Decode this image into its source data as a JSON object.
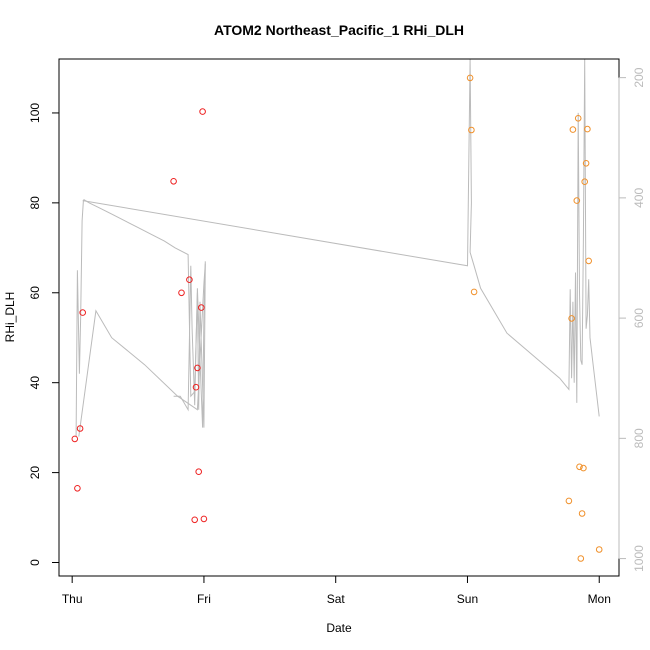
{
  "chart_data": {
    "type": "scatter",
    "title": "ATOM2 Northeast_Pacific_1 RHi_DLH",
    "xlabel": "Date",
    "ylabel": "RHi_DLH",
    "x_unit": "days since Thursday 00:00",
    "xlim": [
      -0.1,
      4.15
    ],
    "ylim": [
      -3,
      112
    ],
    "x_ticks": [
      {
        "value": 0,
        "label": "Thu"
      },
      {
        "value": 1,
        "label": "Fri"
      },
      {
        "value": 2,
        "label": "Sat"
      },
      {
        "value": 3,
        "label": "Sun"
      },
      {
        "value": 4,
        "label": "Mon"
      }
    ],
    "y_ticks": [
      0,
      20,
      40,
      60,
      80,
      100
    ],
    "y2_ticks": [
      200,
      400,
      600,
      800,
      1000
    ],
    "y2_range_at_ylim": [
      1029,
      169
    ],
    "series": [
      {
        "name": "",
        "color": "#ee2222",
        "marker": "open-circle",
        "x": [
          0.02,
          0.04,
          0.06,
          0.08,
          0.77,
          0.83,
          0.89,
          0.93,
          0.94,
          0.95,
          0.96,
          0.98,
          0.99,
          1.0
        ],
        "y": [
          27.5,
          16.5,
          29.8,
          55.6,
          84.8,
          60.0,
          62.9,
          9.5,
          39.0,
          43.3,
          20.2,
          56.7,
          100.3,
          9.7
        ]
      },
      {
        "name": "",
        "color": "#f0902a",
        "marker": "open-circle",
        "x": [
          3.02,
          3.03,
          3.05,
          3.77,
          3.79,
          3.8,
          3.83,
          3.84,
          3.85,
          3.86,
          3.87,
          3.88,
          3.89,
          3.9,
          3.91,
          3.92,
          4.0
        ],
        "y": [
          107.8,
          96.2,
          60.2,
          13.7,
          54.3,
          96.3,
          80.5,
          98.8,
          21.3,
          0.9,
          10.9,
          21.0,
          84.7,
          88.8,
          96.4,
          67.1,
          2.9
        ]
      },
      {
        "name": "",
        "color": "#bbbbbb",
        "marker": "line",
        "x": [
          0.03,
          0.04,
          0.055,
          0.065,
          0.075,
          0.085,
          0.09,
          0.13,
          0.2,
          0.3,
          0.4,
          0.5,
          0.6,
          0.7,
          0.78,
          0.88,
          0.9,
          0.93,
          0.95,
          0.96,
          0.97,
          1.0,
          1.01,
          1.0,
          0.95,
          0.8,
          0.55,
          0.3,
          0.18,
          0.05
        ],
        "y": [
          28,
          65,
          42,
          55,
          76,
          80.5,
          80.7,
          80.0,
          79.0,
          77.5,
          76.0,
          74.5,
          73.0,
          71.5,
          70.0,
          68.5,
          37,
          38,
          60,
          34,
          58,
          30,
          66.5,
          62,
          34,
          37,
          44,
          50,
          56,
          28
        ]
      },
      {
        "name": "",
        "color": "#bbbbbb",
        "marker": "line",
        "x": [
          0.77,
          0.82,
          0.84,
          0.88,
          0.9,
          0.91,
          0.93,
          0.94,
          0.95,
          0.97,
          0.99,
          1.0,
          1.01
        ],
        "y": [
          37,
          37,
          36,
          34,
          66,
          52,
          35,
          48,
          61,
          45,
          30,
          55,
          67
        ]
      },
      {
        "name": "",
        "color": "#bbbbbb",
        "marker": "line",
        "x": [
          0.08,
          3.0,
          3.02,
          3.03,
          3.02,
          3.05,
          3.1,
          3.3,
          3.5,
          3.7,
          3.77,
          3.78,
          3.79,
          3.8,
          3.81,
          3.82,
          3.83,
          3.84,
          3.85,
          3.86,
          3.87,
          3.88,
          3.89,
          3.9,
          3.91,
          3.92,
          3.93,
          3.95,
          4.0
        ],
        "y": [
          80.5,
          66.0,
          112,
          80,
          69,
          66,
          61,
          51,
          46,
          41,
          38.5,
          60.8,
          41,
          58,
          40,
          64.5,
          35.5,
          100,
          60,
          45,
          44,
          72,
          112,
          52,
          55,
          63,
          50,
          45,
          32.5
        ]
      }
    ]
  }
}
